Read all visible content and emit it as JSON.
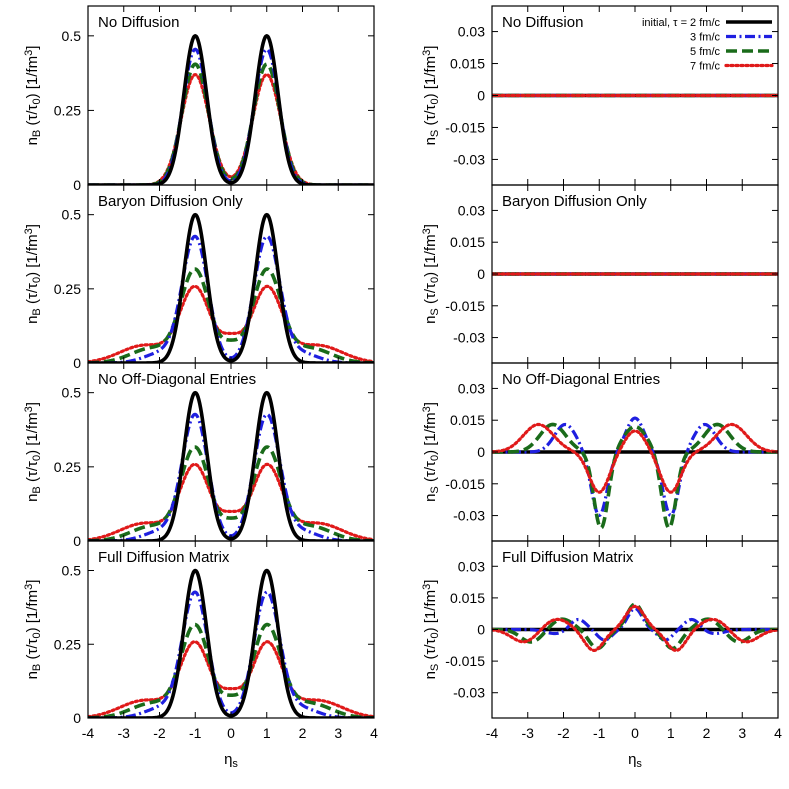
{
  "figure": {
    "xlabel_main": "η",
    "xlabel_sub": "s"
  },
  "legend": {
    "position": "top-right",
    "entries": [
      {
        "label": "initial, τ = 2 fm/c",
        "color": "#000000",
        "dash": "solid"
      },
      {
        "label": "3 fm/c",
        "color": "#1f1fe0",
        "dash": "dashdot"
      },
      {
        "label": "5 fm/c",
        "color": "#1a6b1a",
        "dash": "dash"
      },
      {
        "label": "7 fm/c",
        "color": "#e01a1a",
        "dash": "dot"
      }
    ]
  },
  "chart_data": [
    {
      "type": "line",
      "row": 0,
      "col": 0,
      "title": "No Diffusion",
      "ylabel": "n_B (τ/τ_0) [1/fm^3]",
      "xlim": [
        -4,
        4
      ],
      "ylim": [
        0,
        0.6
      ],
      "xticks": [
        -4,
        -3,
        -2,
        -1,
        0,
        1,
        2,
        3,
        4
      ],
      "yticks": [
        0,
        0.25,
        0.5
      ],
      "ytick_labels": [
        "0",
        "0.25",
        "0.5"
      ],
      "series": [
        {
          "name": "initial, τ = 2 fm/c",
          "gauss": [
            [
              -1,
              0.5,
              0.32
            ],
            [
              1,
              0.5,
              0.32
            ]
          ]
        },
        {
          "name": "3 fm/c",
          "gauss": [
            [
              -1,
              0.455,
              0.345
            ],
            [
              1,
              0.455,
              0.345
            ]
          ]
        },
        {
          "name": "5 fm/c",
          "gauss": [
            [
              -1,
              0.405,
              0.37
            ],
            [
              1,
              0.405,
              0.37
            ]
          ]
        },
        {
          "name": "7 fm/c",
          "gauss": [
            [
              -1,
              0.37,
              0.39
            ],
            [
              1,
              0.37,
              0.39
            ]
          ]
        }
      ]
    },
    {
      "type": "line",
      "row": 1,
      "col": 0,
      "title": "Baryon Diffusion Only",
      "ylabel": "n_B (τ/τ_0) [1/fm^3]",
      "xlim": [
        -4,
        4
      ],
      "ylim": [
        0,
        0.6
      ],
      "xticks": [
        -4,
        -3,
        -2,
        -1,
        0,
        1,
        2,
        3,
        4
      ],
      "yticks": [
        0,
        0.25,
        0.5
      ],
      "ytick_labels": [
        "0",
        "0.25",
        "0.5"
      ],
      "series": [
        {
          "name": "initial, τ = 2 fm/c",
          "gauss": [
            [
              -1,
              0.5,
              0.32
            ],
            [
              1,
              0.5,
              0.32
            ]
          ]
        },
        {
          "name": "3 fm/c",
          "gauss": [
            [
              -1,
              0.42,
              0.36
            ],
            [
              1,
              0.42,
              0.36
            ],
            [
              -1.9,
              0.035,
              0.5
            ],
            [
              1.9,
              0.035,
              0.5
            ]
          ]
        },
        {
          "name": "5 fm/c",
          "gauss": [
            [
              -1,
              0.31,
              0.4
            ],
            [
              1,
              0.31,
              0.4
            ],
            [
              0,
              0.05,
              0.25
            ],
            [
              -2.2,
              0.05,
              0.6
            ],
            [
              2.2,
              0.05,
              0.6
            ]
          ]
        },
        {
          "name": "7 fm/c",
          "gauss": [
            [
              -1,
              0.25,
              0.42
            ],
            [
              1,
              0.25,
              0.42
            ],
            [
              0,
              0.07,
              0.3
            ],
            [
              -2.4,
              0.06,
              0.7
            ],
            [
              2.4,
              0.06,
              0.7
            ]
          ]
        }
      ]
    },
    {
      "type": "line",
      "row": 2,
      "col": 0,
      "title": "No Off-Diagonal Entries",
      "ylabel": "n_B (τ/τ_0) [1/fm^3]",
      "xlim": [
        -4,
        4
      ],
      "ylim": [
        0,
        0.6
      ],
      "xticks": [
        -4,
        -3,
        -2,
        -1,
        0,
        1,
        2,
        3,
        4
      ],
      "yticks": [
        0,
        0.25,
        0.5
      ],
      "ytick_labels": [
        "0",
        "0.25",
        "0.5"
      ],
      "series": [
        {
          "name": "initial, τ = 2 fm/c",
          "gauss": [
            [
              -1,
              0.5,
              0.32
            ],
            [
              1,
              0.5,
              0.32
            ]
          ]
        },
        {
          "name": "3 fm/c",
          "gauss": [
            [
              -1,
              0.42,
              0.36
            ],
            [
              1,
              0.42,
              0.36
            ],
            [
              -1.9,
              0.035,
              0.5
            ],
            [
              1.9,
              0.035,
              0.5
            ]
          ]
        },
        {
          "name": "5 fm/c",
          "gauss": [
            [
              -1,
              0.31,
              0.4
            ],
            [
              1,
              0.31,
              0.4
            ],
            [
              0,
              0.05,
              0.25
            ],
            [
              -2.2,
              0.05,
              0.6
            ],
            [
              2.2,
              0.05,
              0.6
            ]
          ]
        },
        {
          "name": "7 fm/c",
          "gauss": [
            [
              -1,
              0.25,
              0.42
            ],
            [
              1,
              0.25,
              0.42
            ],
            [
              0,
              0.07,
              0.3
            ],
            [
              -2.4,
              0.06,
              0.7
            ],
            [
              2.4,
              0.06,
              0.7
            ]
          ]
        }
      ]
    },
    {
      "type": "line",
      "row": 3,
      "col": 0,
      "title": "Full Diffusion Matrix",
      "ylabel": "n_B (τ/τ_0) [1/fm^3]",
      "xlim": [
        -4,
        4
      ],
      "ylim": [
        0,
        0.6
      ],
      "xticks": [
        -4,
        -3,
        -2,
        -1,
        0,
        1,
        2,
        3,
        4
      ],
      "xtick_labels": [
        "-4",
        "-3",
        "-2",
        "-1",
        "0",
        "1",
        "2",
        "3",
        "4"
      ],
      "yticks": [
        0,
        0.25,
        0.5
      ],
      "ytick_labels": [
        "0",
        "0.25",
        "0.5"
      ],
      "series": [
        {
          "name": "initial, τ = 2 fm/c",
          "gauss": [
            [
              -1,
              0.5,
              0.32
            ],
            [
              1,
              0.5,
              0.32
            ]
          ]
        },
        {
          "name": "3 fm/c",
          "gauss": [
            [
              -1,
              0.42,
              0.36
            ],
            [
              1,
              0.42,
              0.36
            ],
            [
              -1.9,
              0.035,
              0.5
            ],
            [
              1.9,
              0.035,
              0.5
            ]
          ]
        },
        {
          "name": "5 fm/c",
          "gauss": [
            [
              -1,
              0.31,
              0.4
            ],
            [
              1,
              0.31,
              0.4
            ],
            [
              0,
              0.05,
              0.25
            ],
            [
              -2.2,
              0.05,
              0.6
            ],
            [
              2.2,
              0.05,
              0.6
            ]
          ]
        },
        {
          "name": "7 fm/c",
          "gauss": [
            [
              -1,
              0.25,
              0.42
            ],
            [
              1,
              0.25,
              0.42
            ],
            [
              0,
              0.07,
              0.3
            ],
            [
              -2.4,
              0.06,
              0.7
            ],
            [
              2.4,
              0.06,
              0.7
            ]
          ]
        }
      ]
    },
    {
      "type": "line",
      "row": 0,
      "col": 1,
      "title": "No Diffusion",
      "ylabel": "n_S (τ/τ_0) [1/fm^3]",
      "xlim": [
        -4,
        4
      ],
      "ylim": [
        -0.042,
        0.042
      ],
      "xticks": [
        -4,
        -3,
        -2,
        -1,
        0,
        1,
        2,
        3,
        4
      ],
      "yticks": [
        -0.03,
        -0.015,
        0,
        0.015,
        0.03
      ],
      "ytick_labels": [
        "-0.03",
        "-0.015",
        "0",
        "0.015",
        "0.03"
      ],
      "series": [
        {
          "name": "initial, τ = 2 fm/c",
          "gauss": []
        },
        {
          "name": "3 fm/c",
          "gauss": []
        },
        {
          "name": "5 fm/c",
          "gauss": []
        },
        {
          "name": "7 fm/c",
          "gauss": []
        }
      ]
    },
    {
      "type": "line",
      "row": 1,
      "col": 1,
      "title": "Baryon Diffusion Only",
      "ylabel": "n_S (τ/τ_0) [1/fm^3]",
      "xlim": [
        -4,
        4
      ],
      "ylim": [
        -0.042,
        0.042
      ],
      "xticks": [
        -4,
        -3,
        -2,
        -1,
        0,
        1,
        2,
        3,
        4
      ],
      "yticks": [
        -0.03,
        -0.015,
        0,
        0.015,
        0.03
      ],
      "ytick_labels": [
        "-0.03",
        "-0.015",
        "0",
        "0.015",
        "0.03"
      ],
      "series": [
        {
          "name": "initial, τ = 2 fm/c",
          "gauss": []
        },
        {
          "name": "3 fm/c",
          "gauss": []
        },
        {
          "name": "5 fm/c",
          "gauss": []
        },
        {
          "name": "7 fm/c",
          "gauss": []
        }
      ]
    },
    {
      "type": "line",
      "row": 2,
      "col": 1,
      "title": "No Off-Diagonal Entries",
      "ylabel": "n_S (τ/τ_0) [1/fm^3]",
      "xlim": [
        -4,
        4
      ],
      "ylim": [
        -0.042,
        0.042
      ],
      "xticks": [
        -4,
        -3,
        -2,
        -1,
        0,
        1,
        2,
        3,
        4
      ],
      "yticks": [
        -0.03,
        -0.015,
        0,
        0.015,
        0.03
      ],
      "ytick_labels": [
        "-0.03",
        "-0.015",
        "0",
        "0.015",
        "0.03"
      ],
      "series": [
        {
          "name": "initial, τ = 2 fm/c",
          "gauss": []
        },
        {
          "name": "3 fm/c",
          "gauss": [
            [
              -1.95,
              0.013,
              0.3
            ],
            [
              1.95,
              0.013,
              0.3
            ],
            [
              -1,
              -0.03,
              0.22
            ],
            [
              1,
              -0.03,
              0.22
            ],
            [
              0,
              0.016,
              0.25
            ]
          ]
        },
        {
          "name": "5 fm/c",
          "gauss": [
            [
              -2.3,
              0.013,
              0.36
            ],
            [
              2.3,
              0.013,
              0.36
            ],
            [
              -0.95,
              -0.036,
              0.2
            ],
            [
              0.95,
              -0.036,
              0.2
            ],
            [
              0,
              0.012,
              0.32
            ]
          ]
        },
        {
          "name": "7 fm/c",
          "gauss": [
            [
              -2.7,
              0.013,
              0.42
            ],
            [
              2.7,
              0.013,
              0.42
            ],
            [
              -1,
              -0.019,
              0.28
            ],
            [
              1,
              -0.019,
              0.28
            ],
            [
              0,
              0.01,
              0.28
            ]
          ]
        }
      ]
    },
    {
      "type": "line",
      "row": 3,
      "col": 1,
      "title": "Full Diffusion Matrix",
      "ylabel": "n_S (τ/τ_0) [1/fm^3]",
      "xlim": [
        -4,
        4
      ],
      "ylim": [
        -0.042,
        0.042
      ],
      "xticks": [
        -4,
        -3,
        -2,
        -1,
        0,
        1,
        2,
        3,
        4
      ],
      "xtick_labels": [
        "-4",
        "-3",
        "-2",
        "-1",
        "0",
        "1",
        "2",
        "3",
        "4"
      ],
      "yticks": [
        -0.03,
        -0.015,
        0,
        0.015,
        0.03
      ],
      "ytick_labels": [
        "-0.03",
        "-0.015",
        "0",
        "0.015",
        "0.03"
      ],
      "series": [
        {
          "name": "initial, τ = 2 fm/c",
          "gauss": []
        },
        {
          "name": "3 fm/c",
          "gauss": [
            [
              -1.6,
              0.005,
              0.22
            ],
            [
              1.6,
              0.005,
              0.22
            ],
            [
              -0.85,
              -0.005,
              0.2
            ],
            [
              0.85,
              -0.005,
              0.2
            ],
            [
              0,
              0.01,
              0.2
            ],
            [
              -2.2,
              -0.002,
              0.3
            ],
            [
              2.2,
              -0.002,
              0.3
            ]
          ]
        },
        {
          "name": "5 fm/c",
          "gauss": [
            [
              -2.05,
              0.005,
              0.3
            ],
            [
              2.05,
              0.005,
              0.3
            ],
            [
              -1.05,
              -0.009,
              0.24
            ],
            [
              1.05,
              -0.009,
              0.24
            ],
            [
              0,
              0.012,
              0.22
            ],
            [
              -2.9,
              -0.006,
              0.3
            ],
            [
              2.9,
              -0.006,
              0.3
            ]
          ]
        },
        {
          "name": "7 fm/c",
          "gauss": [
            [
              -2.2,
              0.005,
              0.35
            ],
            [
              2.2,
              0.005,
              0.35
            ],
            [
              -1.15,
              -0.01,
              0.27
            ],
            [
              1.15,
              -0.01,
              0.27
            ],
            [
              0,
              0.011,
              0.26
            ],
            [
              -3.1,
              -0.006,
              0.35
            ],
            [
              3.1,
              -0.006,
              0.35
            ]
          ]
        }
      ]
    }
  ]
}
